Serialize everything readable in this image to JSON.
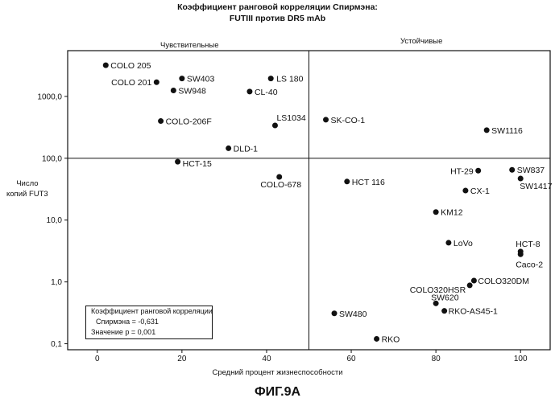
{
  "chart_data": {
    "type": "scatter",
    "title": "Коэффициент ранговой корреляции Спирмэна:",
    "subtitle": "FUTIII против DR5 mAb",
    "xlabel": "Средний процент жизнеспособности",
    "ylabel": [
      "Число",
      "копий FUT3"
    ],
    "x_ticks": [
      "0",
      "20",
      "40",
      "60",
      "80",
      "100"
    ],
    "y_ticks": [
      "0,1",
      "1,0",
      "10,0",
      "100,0",
      "1000,0"
    ],
    "xlim": [
      -7,
      107
    ],
    "ylim": [
      0.08,
      5500
    ],
    "y_scale": "log",
    "quadrant_divider": {
      "x": 50,
      "y": 100
    },
    "quadrant_labels": {
      "left": "Чувствительные",
      "right": "Устойчивые"
    },
    "points": [
      {
        "label": "COLO 205",
        "x": 2,
        "y": 3200
      },
      {
        "label": "COLO 201",
        "x": 14,
        "y": 1700
      },
      {
        "label": "SW403",
        "x": 20,
        "y": 1950
      },
      {
        "label": "SW948",
        "x": 18,
        "y": 1250
      },
      {
        "label": "LS 180",
        "x": 41,
        "y": 1950
      },
      {
        "label": "CL-40",
        "x": 36,
        "y": 1200
      },
      {
        "label": "COLO-206F",
        "x": 15,
        "y": 400
      },
      {
        "label": "LS1034",
        "x": 42,
        "y": 340
      },
      {
        "label": "DLD-1",
        "x": 31,
        "y": 145
      },
      {
        "label": "HCT-15",
        "x": 19,
        "y": 88
      },
      {
        "label": "COLO-678",
        "x": 43,
        "y": 50
      },
      {
        "label": "SK-CO-1",
        "x": 54,
        "y": 420
      },
      {
        "label": "SW1116",
        "x": 92,
        "y": 285
      },
      {
        "label": "HT-29",
        "x": 90,
        "y": 63
      },
      {
        "label": "SW837",
        "x": 98,
        "y": 65
      },
      {
        "label": "SW1417",
        "x": 100,
        "y": 47
      },
      {
        "label": "HCT 116",
        "x": 59,
        "y": 42
      },
      {
        "label": "CX-1",
        "x": 87,
        "y": 30
      },
      {
        "label": "KM12",
        "x": 80,
        "y": 13.5
      },
      {
        "label": "LoVo",
        "x": 83,
        "y": 4.3
      },
      {
        "label": "HCT-8",
        "x": 100,
        "y": 3.1
      },
      {
        "label": "Caco-2",
        "x": 100,
        "y": 2.8
      },
      {
        "label": "COLO320DM",
        "x": 89,
        "y": 1.05
      },
      {
        "label": "COLO320HSR",
        "x": 88,
        "y": 0.88
      },
      {
        "label": "SW620",
        "x": 80,
        "y": 0.45
      },
      {
        "label": "RKO-AS45-1",
        "x": 82,
        "y": 0.34
      },
      {
        "label": "SW480",
        "x": 56,
        "y": 0.31
      },
      {
        "label": "RKO",
        "x": 66,
        "y": 0.12
      }
    ]
  },
  "stats_box": {
    "line1": "Коэффициент ранговой корреляции",
    "line2": "Спирмэна = -0,631",
    "line3": "Значение p = 0,001"
  },
  "figure_label": "ФИГ.9A"
}
